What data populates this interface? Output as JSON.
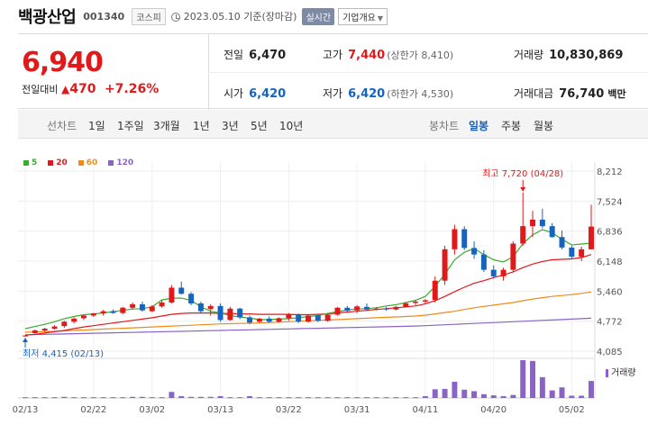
{
  "header": {
    "company_name": "백광산업",
    "stock_code": "001340",
    "market_badge": "코스피",
    "date_text": "2023.05.10 기준(장마감)",
    "realtime_label": "실시간",
    "company_overview_label": "기업개요"
  },
  "price": {
    "current": "6,940",
    "change_label": "전일대비",
    "change_value": "470",
    "change_pct": "+7.26%"
  },
  "stats": {
    "prev_close_label": "전일",
    "prev_close": "6,470",
    "high_label": "고가",
    "high": "7,440",
    "upper_limit": "(상한가 8,410)",
    "volume_label": "거래량",
    "volume": "10,830,869",
    "open_label": "시가",
    "open": "6,420",
    "low_label": "저가",
    "low": "6,420",
    "lower_limit": "(하한가 4,530)",
    "amount_label": "거래대금",
    "amount": "76,740",
    "amount_unit": "백만"
  },
  "toolbar": {
    "line_chart_label": "선차트",
    "ranges": [
      "1일",
      "1주일",
      "3개월",
      "1년",
      "3년",
      "5년",
      "10년"
    ],
    "candle_label": "봉차트",
    "candle_modes": [
      "일봉",
      "주봉",
      "월봉"
    ],
    "active_candle": "일봉"
  },
  "colors": {
    "up": "#e0191b",
    "down": "#1564c0",
    "ma5": "#3bab2e",
    "ma20": "#e0191b",
    "ma60": "#f08a1c",
    "ma120": "#8a63c4",
    "volume": "#8a63c4"
  },
  "chart_data": {
    "type": "candlestick",
    "legend": [
      {
        "name": "5",
        "color": "#3bab2e"
      },
      {
        "name": "20",
        "color": "#e0191b"
      },
      {
        "name": "60",
        "color": "#f08a1c"
      },
      {
        "name": "120",
        "color": "#8a63c4"
      }
    ],
    "ylim": [
      4085,
      8212
    ],
    "y_ticks": [
      "8,212",
      "7,524",
      "6,836",
      "6,148",
      "5,460",
      "4,772",
      "4,085"
    ],
    "y_tick_values": [
      8212,
      7524,
      6836,
      6148,
      5460,
      4772,
      4085
    ],
    "x_ticks": [
      "02/13",
      "02/22",
      "03/02",
      "03/13",
      "03/22",
      "03/31",
      "04/11",
      "04/20",
      "05/02"
    ],
    "x_tick_index": [
      0,
      7,
      13,
      20,
      27,
      34,
      41,
      48,
      56
    ],
    "annotation_high": "최고 7,720 (04/28)",
    "annotation_low": "최저 4,415 (02/13)",
    "volume_label": "거래량",
    "candles": [
      [
        4440,
        4450,
        4415,
        4445
      ],
      [
        4500,
        4580,
        4480,
        4560
      ],
      [
        4560,
        4620,
        4530,
        4600
      ],
      [
        4600,
        4680,
        4580,
        4650
      ],
      [
        4660,
        4780,
        4620,
        4760
      ],
      [
        4760,
        4860,
        4720,
        4830
      ],
      [
        4840,
        4920,
        4800,
        4900
      ],
      [
        4900,
        4960,
        4870,
        4950
      ],
      [
        4950,
        5030,
        4900,
        5000
      ],
      [
        5000,
        5040,
        4940,
        4960
      ],
      [
        4960,
        5100,
        4930,
        5080
      ],
      [
        5080,
        5200,
        5040,
        5160
      ],
      [
        5160,
        5220,
        4990,
        5020
      ],
      [
        5000,
        5140,
        4980,
        5110
      ],
      [
        5110,
        5250,
        5080,
        5200
      ],
      [
        5200,
        5600,
        5180,
        5540
      ],
      [
        5540,
        5680,
        5380,
        5400
      ],
      [
        5400,
        5440,
        5140,
        5180
      ],
      [
        5180,
        5220,
        4950,
        5000
      ],
      [
        5050,
        5160,
        4900,
        5120
      ],
      [
        5120,
        5180,
        4760,
        4800
      ],
      [
        4800,
        5100,
        4780,
        5060
      ],
      [
        5060,
        5080,
        4820,
        4860
      ],
      [
        4860,
        4900,
        4700,
        4740
      ],
      [
        4760,
        4850,
        4730,
        4830
      ],
      [
        4830,
        4880,
        4730,
        4760
      ],
      [
        4760,
        4860,
        4740,
        4840
      ],
      [
        4840,
        4960,
        4780,
        4920
      ],
      [
        4920,
        4950,
        4730,
        4760
      ],
      [
        4760,
        4930,
        4740,
        4900
      ],
      [
        4900,
        4920,
        4750,
        4780
      ],
      [
        4780,
        4950,
        4760,
        4920
      ],
      [
        4920,
        5100,
        4900,
        5080
      ],
      [
        5080,
        5120,
        4980,
        5010
      ],
      [
        5020,
        5140,
        4960,
        5110
      ],
      [
        5100,
        5180,
        5000,
        5040
      ],
      [
        5040,
        5100,
        5020,
        5060
      ],
      [
        5060,
        5100,
        5010,
        5040
      ],
      [
        5040,
        5120,
        5020,
        5100
      ],
      [
        5100,
        5200,
        5080,
        5180
      ],
      [
        5190,
        5260,
        5140,
        5220
      ],
      [
        5220,
        5280,
        5160,
        5250
      ],
      [
        5260,
        5800,
        5200,
        5700
      ],
      [
        5700,
        6500,
        5600,
        6420
      ],
      [
        6420,
        6980,
        6300,
        6880
      ],
      [
        6880,
        6950,
        6400,
        6450
      ],
      [
        6450,
        6600,
        6200,
        6300
      ],
      [
        6300,
        6400,
        5900,
        5950
      ],
      [
        5950,
        6050,
        5750,
        5800
      ],
      [
        5800,
        6000,
        5700,
        5950
      ],
      [
        5950,
        6600,
        5900,
        6550
      ],
      [
        6550,
        7720,
        6500,
        6950
      ],
      [
        6950,
        7300,
        6700,
        7100
      ],
      [
        7100,
        7350,
        6900,
        6950
      ],
      [
        6950,
        7020,
        6680,
        6700
      ],
      [
        6700,
        6850,
        6420,
        6460
      ],
      [
        6460,
        6500,
        6200,
        6250
      ],
      [
        6250,
        6480,
        6150,
        6420
      ],
      [
        6420,
        7440,
        6420,
        6940
      ]
    ],
    "ma5": [
      4600,
      4650,
      4700,
      4760,
      4830,
      4880,
      4920,
      4940,
      4960,
      4990,
      5020,
      5050,
      5060,
      5100,
      5260,
      5300,
      5300,
      5250,
      5100,
      5000,
      4960,
      4900,
      4870,
      4840,
      4810,
      4810,
      4820,
      4830,
      4850,
      4880,
      4900,
      4950,
      4990,
      5030,
      5050,
      5060,
      5080,
      5120,
      5150,
      5200,
      5250,
      5340,
      5570,
      5850,
      6180,
      6350,
      6440,
      6300,
      6180,
      6130,
      6250,
      6550,
      6750,
      6870,
      6800,
      6650,
      6520,
      6540,
      6560
    ],
    "ma20": [
      4450,
      4470,
      4500,
      4530,
      4560,
      4600,
      4640,
      4670,
      4700,
      4730,
      4760,
      4790,
      4820,
      4850,
      4890,
      4930,
      4950,
      4960,
      4960,
      4960,
      4950,
      4950,
      4940,
      4940,
      4930,
      4930,
      4930,
      4930,
      4920,
      4920,
      4930,
      4940,
      4960,
      4980,
      5000,
      5020,
      5040,
      5060,
      5080,
      5100,
      5120,
      5170,
      5240,
      5340,
      5450,
      5550,
      5640,
      5700,
      5770,
      5830,
      5900,
      6000,
      6080,
      6140,
      6180,
      6190,
      6200,
      6230,
      6300
    ],
    "ma60": [
      4520,
      4525,
      4530,
      4540,
      4550,
      4560,
      4570,
      4580,
      4590,
      4600,
      4610,
      4620,
      4630,
      4640,
      4650,
      4660,
      4670,
      4680,
      4690,
      4700,
      4710,
      4715,
      4720,
      4725,
      4730,
      4740,
      4750,
      4760,
      4770,
      4780,
      4790,
      4800,
      4810,
      4820,
      4830,
      4840,
      4850,
      4860,
      4870,
      4880,
      4890,
      4910,
      4940,
      4970,
      5000,
      5040,
      5080,
      5110,
      5140,
      5170,
      5200,
      5240,
      5280,
      5310,
      5340,
      5360,
      5380,
      5410,
      5440
    ],
    "ma120": [
      4460,
      4465,
      4470,
      4475,
      4480,
      4485,
      4490,
      4495,
      4500,
      4505,
      4510,
      4515,
      4520,
      4525,
      4530,
      4535,
      4540,
      4545,
      4550,
      4555,
      4560,
      4565,
      4570,
      4575,
      4580,
      4585,
      4590,
      4595,
      4600,
      4605,
      4610,
      4615,
      4620,
      4625,
      4630,
      4635,
      4640,
      4645,
      4650,
      4655,
      4660,
      4670,
      4680,
      4690,
      4700,
      4710,
      4720,
      4730,
      4740,
      4750,
      4760,
      4770,
      4780,
      4790,
      4800,
      4810,
      4820,
      4830,
      4840
    ],
    "volume": [
      0.02,
      0.02,
      0.02,
      0.02,
      0.03,
      0.02,
      0.02,
      0.02,
      0.02,
      0.02,
      0.02,
      0.03,
      0.03,
      0.02,
      0.02,
      0.16,
      0.05,
      0.03,
      0.03,
      0.03,
      0.05,
      0.02,
      0.02,
      0.05,
      0.02,
      0.02,
      0.02,
      0.02,
      0.02,
      0.02,
      0.02,
      0.02,
      0.02,
      0.02,
      0.02,
      0.02,
      0.02,
      0.02,
      0.02,
      0.02,
      0.02,
      0.05,
      0.23,
      0.24,
      0.43,
      0.22,
      0.18,
      0.1,
      0.07,
      0.05,
      0.08,
      1.0,
      0.98,
      0.55,
      0.2,
      0.28,
      0.06,
      0.06,
      0.45
    ]
  }
}
